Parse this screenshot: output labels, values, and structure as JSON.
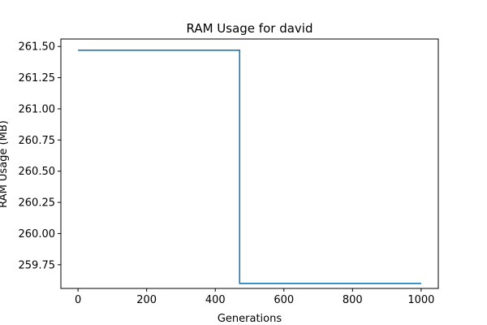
{
  "chart_data": {
    "type": "line",
    "title": "RAM Usage for david",
    "xlabel": "Generations",
    "ylabel": "RAM Usage (MB)",
    "xlim": [
      -50,
      1050
    ],
    "ylim": [
      259.56,
      261.56
    ],
    "xticks": [
      0,
      200,
      400,
      600,
      800,
      1000
    ],
    "yticks": [
      259.75,
      260.0,
      260.25,
      260.5,
      260.75,
      261.0,
      261.25,
      261.5
    ],
    "xtick_labels": [
      "0",
      "200",
      "400",
      "600",
      "800",
      "1000"
    ],
    "ytick_labels": [
      "259.75",
      "260.00",
      "260.25",
      "260.50",
      "260.75",
      "261.00",
      "261.25",
      "261.50"
    ],
    "grid": false,
    "legend": "none",
    "series": [
      {
        "color": "#1f77b4",
        "x": [
          0,
          471,
          471,
          1000
        ],
        "y": [
          261.47,
          261.47,
          259.6,
          259.6
        ]
      }
    ]
  }
}
